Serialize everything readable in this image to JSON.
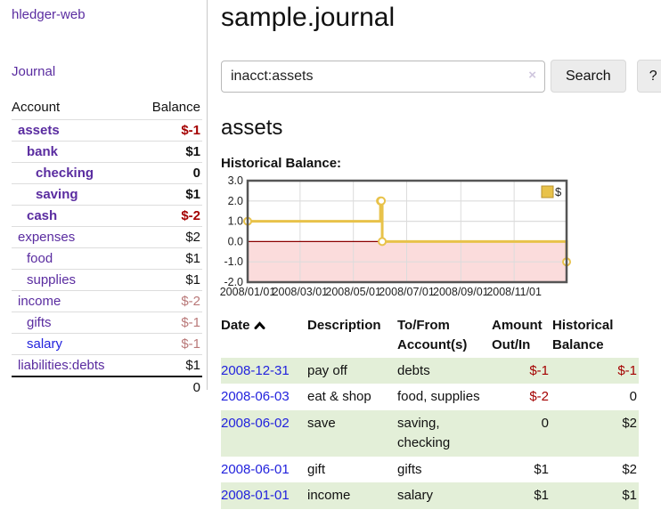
{
  "colors": {
    "link_purple": "#5a2ca0",
    "link_blue": "#2222dd",
    "negative_strong": "#a40000",
    "negative_soft": "#b97878",
    "row_green": "#e3efd8",
    "chart_gold": "#e8c24a"
  },
  "sidebar": {
    "brand": "hledger-web",
    "journal_label": "Journal",
    "accounts": {
      "header_account": "Account",
      "header_balance": "Balance",
      "rows": [
        {
          "name": "assets",
          "balance": "$-1"
        },
        {
          "name": "bank",
          "balance": "$1"
        },
        {
          "name": "checking",
          "balance": "0"
        },
        {
          "name": "saving",
          "balance": "$1"
        },
        {
          "name": "cash",
          "balance": "$-2"
        },
        {
          "name": "expenses",
          "balance": "$2"
        },
        {
          "name": "food",
          "balance": "$1"
        },
        {
          "name": "supplies",
          "balance": "$1"
        },
        {
          "name": "income",
          "balance": "$-2"
        },
        {
          "name": "gifts",
          "balance": "$-1"
        },
        {
          "name": "salary",
          "balance": "$-1"
        },
        {
          "name": "liabilities:debts",
          "balance": "$1"
        }
      ],
      "total": "0"
    }
  },
  "main": {
    "title": "sample.journal",
    "search": {
      "value": "inacct:assets",
      "clear_icon": "×",
      "button_label": "Search",
      "help_label": "?"
    },
    "account_heading": "assets",
    "register": {
      "headers": {
        "date": "Date",
        "description": "Description",
        "accounts": "To/From Account(s)",
        "amount": "Amount Out/In",
        "balance": "Historical Balance"
      },
      "rows": [
        {
          "date": "2008-12-31",
          "description": "pay off",
          "accounts": "debts",
          "amount": "$-1",
          "balance": "$-1"
        },
        {
          "date": "2008-06-03",
          "description": "eat & shop",
          "accounts": "food, supplies",
          "amount": "$-2",
          "balance": "0"
        },
        {
          "date": "2008-06-02",
          "description": "save",
          "accounts": "saving, checking",
          "amount": "0",
          "balance": "$2"
        },
        {
          "date": "2008-06-01",
          "description": "gift",
          "accounts": "gifts",
          "amount": "$1",
          "balance": "$2"
        },
        {
          "date": "2008-01-01",
          "description": "income",
          "accounts": "salary",
          "amount": "$1",
          "balance": "$1"
        }
      ]
    }
  },
  "chart_data": {
    "type": "line",
    "step": true,
    "title": "Historical Balance:",
    "x_range": [
      "2008-01-01",
      "2008-12-31"
    ],
    "ylim": [
      -2,
      3
    ],
    "grid": true,
    "legend_position": "top-right",
    "series": [
      {
        "name": "$",
        "color": "#e8c24a",
        "points": [
          [
            "2008-01-01",
            1
          ],
          [
            "2008-06-01",
            2
          ],
          [
            "2008-06-02",
            2
          ],
          [
            "2008-06-03",
            0
          ],
          [
            "2008-12-31",
            -1
          ]
        ]
      }
    ],
    "yticks": [
      {
        "value": 3,
        "label": "3.0"
      },
      {
        "value": 2,
        "label": "2.0"
      },
      {
        "value": 1,
        "label": "1.0"
      },
      {
        "value": 0,
        "label": "0.0"
      },
      {
        "value": -1,
        "label": "-1.0"
      },
      {
        "value": -2,
        "label": "-2.0"
      }
    ],
    "xticks": [
      {
        "date": "2008-01-01",
        "label": "2008/01/01"
      },
      {
        "date": "2008-03-01",
        "label": "2008/03/01"
      },
      {
        "date": "2008-05-01",
        "label": "2008/05/01"
      },
      {
        "date": "2008-07-01",
        "label": "2008/07/01"
      },
      {
        "date": "2008-09-01",
        "label": "2008/09/01"
      },
      {
        "date": "2008-11-01",
        "label": "2008/11/01"
      }
    ],
    "colors": {
      "negative_region": "#fbdcdc",
      "zero_line": "#8b0000",
      "grid": "#dcdcdc",
      "border": "#555555",
      "marker_fill": "#ffffff",
      "legend_square_border": "#b8912c"
    }
  }
}
